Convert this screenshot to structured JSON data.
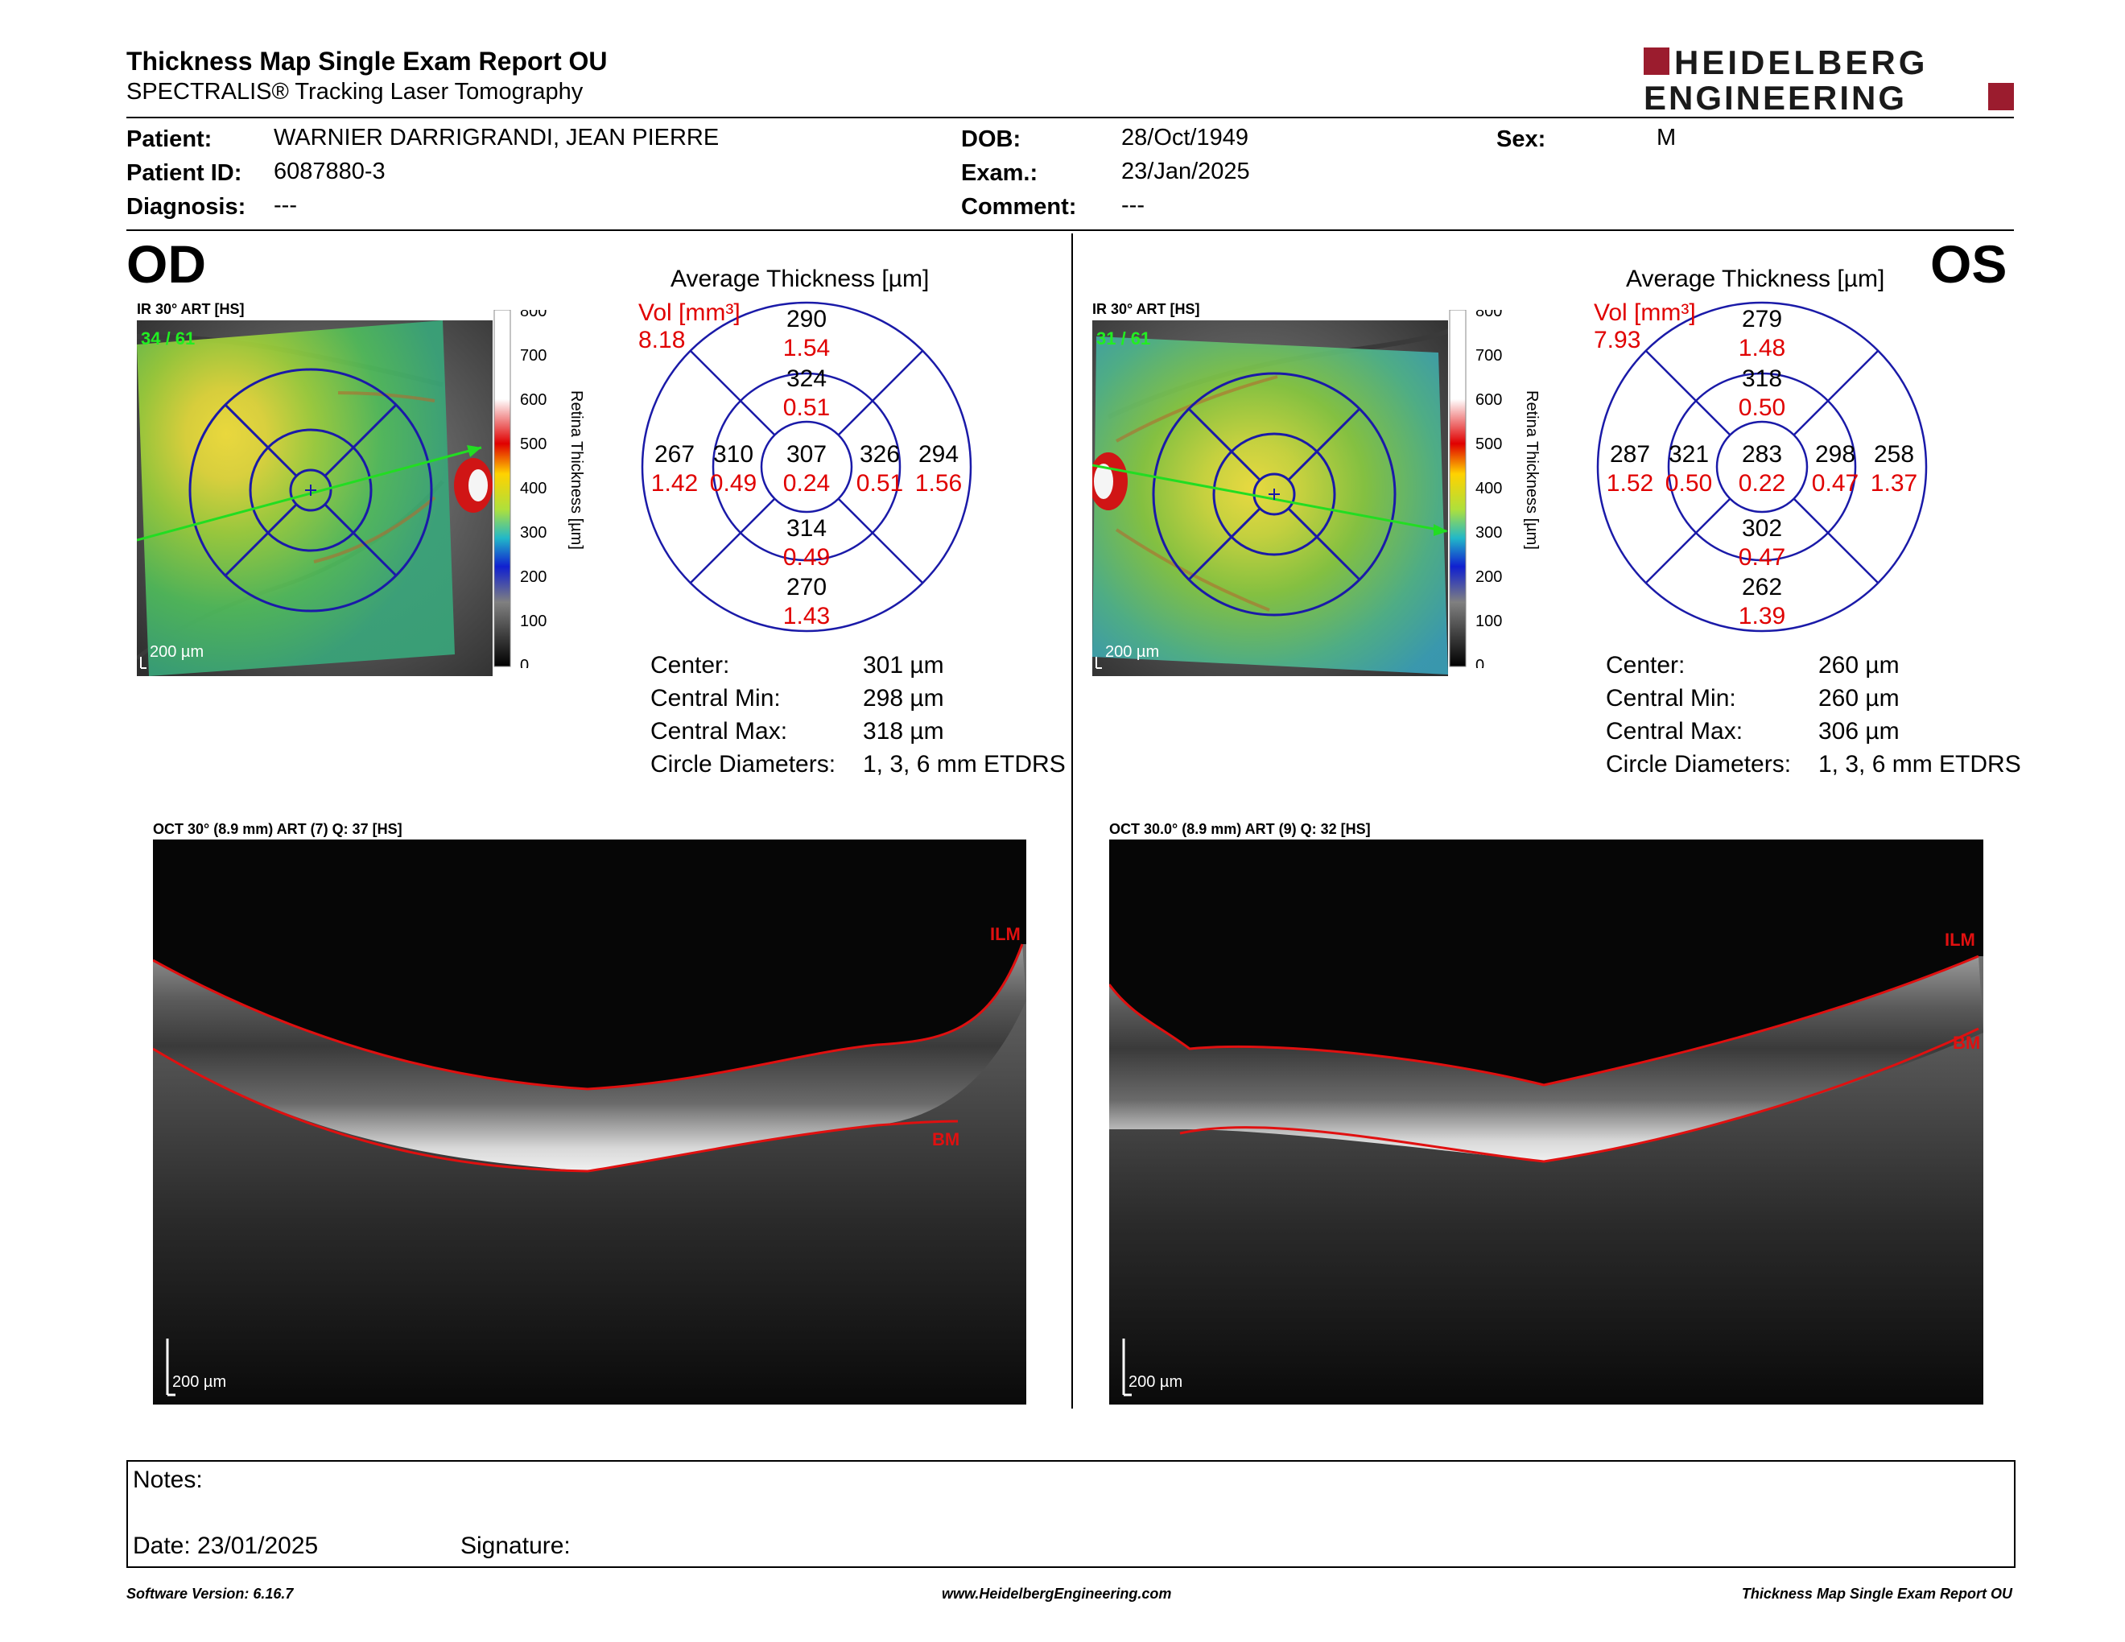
{
  "header": {
    "title": "Thickness Map Single Exam Report OU",
    "subtitle": "SPECTRALIS® Tracking Laser Tomography",
    "logo_line1": "HEIDELBERG",
    "logo_line2": "ENGINEERING"
  },
  "patient": {
    "patient_label": "Patient:",
    "patient_value": "WARNIER DARRIGRANDI, JEAN PIERRE",
    "id_label": "Patient ID:",
    "id_value": "6087880-3",
    "diagnosis_label": "Diagnosis:",
    "diagnosis_value": "---",
    "dob_label": "DOB:",
    "dob_value": "28/Oct/1949",
    "exam_label": "Exam.:",
    "exam_value": "23/Jan/2025",
    "comment_label": "Comment:",
    "comment_value": "---",
    "sex_label": "Sex:",
    "sex_value": "M"
  },
  "colorbar": {
    "ticks": [
      "800",
      "700",
      "600",
      "500",
      "400",
      "300",
      "200",
      "100",
      "0"
    ],
    "label": "Retina Thickness [µm]"
  },
  "od": {
    "eye": "OD",
    "ir_label": "IR 30° ART [HS]",
    "frames": "34 / 61",
    "fundus_scale": "200 µm",
    "avg_title": "Average Thickness [µm]",
    "vol_label": "Vol [mm³]",
    "vol_total": "8.18",
    "etdrs": {
      "outer_top": "290",
      "outer_top_vol": "1.54",
      "inner_top": "324",
      "inner_top_vol": "0.51",
      "outer_left": "267",
      "outer_left_vol": "1.42",
      "inner_left": "310",
      "inner_left_vol": "0.49",
      "center": "307",
      "center_vol": "0.24",
      "inner_right": "326",
      "inner_right_vol": "0.51",
      "outer_right": "294",
      "outer_right_vol": "1.56",
      "inner_bottom": "314",
      "inner_bottom_vol": "0.49",
      "outer_bottom": "270",
      "outer_bottom_vol": "1.43"
    },
    "stats": {
      "center_label": "Center:",
      "center_value": "301 µm",
      "min_label": "Central Min:",
      "min_value": "298 µm",
      "max_label": "Central Max:",
      "max_value": "318 µm",
      "diam_label": "Circle Diameters:",
      "diam_value": "1, 3, 6 mm ETDRS"
    },
    "oct_label": "OCT 30° (8.9 mm) ART (7) Q: 37 [HS]",
    "ilm": "ILM",
    "bm": "BM",
    "oct_scale": "200 µm"
  },
  "os": {
    "eye": "OS",
    "ir_label": "IR 30° ART [HS]",
    "frames": "31 / 61",
    "fundus_scale": "200 µm",
    "avg_title": "Average Thickness [µm]",
    "vol_label": "Vol [mm³]",
    "vol_total": "7.93",
    "etdrs": {
      "outer_top": "279",
      "outer_top_vol": "1.48",
      "inner_top": "318",
      "inner_top_vol": "0.50",
      "outer_left": "287",
      "outer_left_vol": "1.52",
      "inner_left": "321",
      "inner_left_vol": "0.50",
      "center": "283",
      "center_vol": "0.22",
      "inner_right": "298",
      "inner_right_vol": "0.47",
      "outer_right": "258",
      "outer_right_vol": "1.37",
      "inner_bottom": "302",
      "inner_bottom_vol": "0.47",
      "outer_bottom": "262",
      "outer_bottom_vol": "1.39"
    },
    "stats": {
      "center_label": "Center:",
      "center_value": "260 µm",
      "min_label": "Central Min:",
      "min_value": "260 µm",
      "max_label": "Central Max:",
      "max_value": "306 µm",
      "diam_label": "Circle Diameters:",
      "diam_value": "1, 3, 6 mm ETDRS"
    },
    "oct_label": "OCT 30.0° (8.9 mm) ART (9) Q: 32 [HS]",
    "ilm": "ILM",
    "bm": "BM",
    "oct_scale": "200 µm"
  },
  "notes": {
    "notes_label": "Notes:",
    "date_label": "Date: 23/01/2025",
    "signature_label": "Signature:"
  },
  "footer": {
    "software": "Software Version: 6.16.7",
    "website": "www.HeidelbergEngineering.com",
    "report": "Thickness Map Single Exam Report OU"
  },
  "colors": {
    "brand": "#9b1c2e",
    "grid_blue": "#1a1aa8",
    "volume_red": "#e00000",
    "scan_green": "#22dd22",
    "segmentation_red": "#e01010"
  }
}
